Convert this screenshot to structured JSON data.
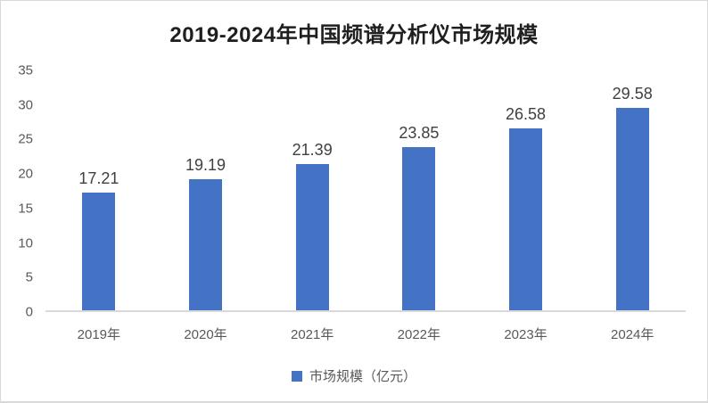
{
  "title": "2019-2024年中国频谱分析仪市场规模",
  "legend": {
    "label": "市场规模（亿元）",
    "swatch_color": "#4472C4"
  },
  "colors": {
    "bar": "#4472C4",
    "title_text": "#1f1f1f",
    "axis_text": "#595959",
    "data_label_text": "#404040",
    "axis_line": "#d9d9d9",
    "frame_border": "#d9d9d9",
    "background": "#ffffff"
  },
  "chart_data": {
    "type": "bar",
    "title": "2019-2024年中国频谱分析仪市场规模",
    "categories": [
      "2019年",
      "2020年",
      "2021年",
      "2022年",
      "2023年",
      "2024年"
    ],
    "series": [
      {
        "name": "市场规模（亿元）",
        "values": [
          17.21,
          19.19,
          21.39,
          23.85,
          26.58,
          29.58
        ]
      }
    ],
    "data_labels": [
      "17.21",
      "19.19",
      "21.39",
      "23.85",
      "26.58",
      "29.58"
    ],
    "xlabel": "",
    "ylabel": "",
    "ylim": [
      0,
      35
    ],
    "yticks": [
      0,
      5,
      10,
      15,
      20,
      25,
      30,
      35
    ],
    "grid": false,
    "legend_position": "bottom"
  }
}
